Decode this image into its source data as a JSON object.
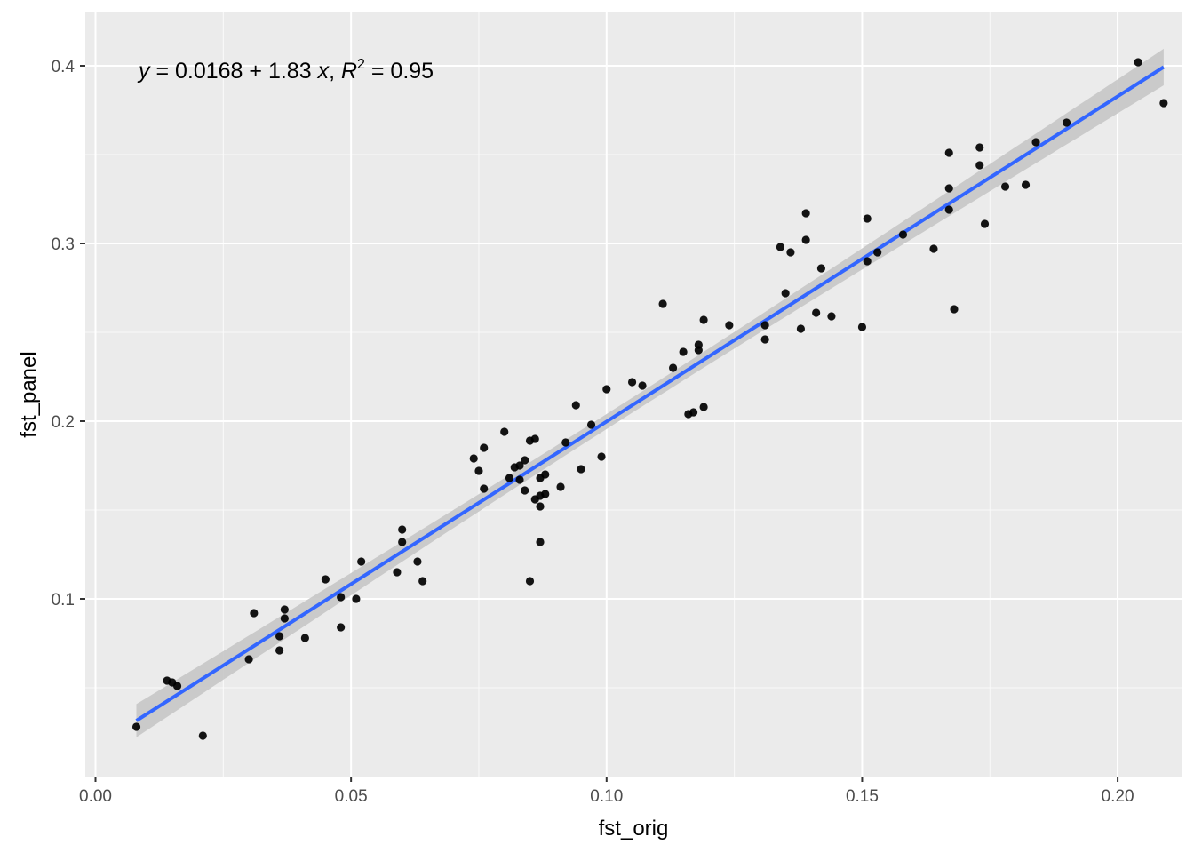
{
  "chart_data": {
    "type": "scatter",
    "title": "",
    "xlabel": "fst_orig",
    "ylabel": "fst_panel",
    "xlim": [
      -0.002,
      0.2125
    ],
    "ylim": [
      0.0,
      0.43
    ],
    "x_ticks": [
      0.0,
      0.05,
      0.1,
      0.15,
      0.2
    ],
    "x_tick_labels": [
      "0.00",
      "0.05",
      "0.10",
      "0.15",
      "0.20"
    ],
    "y_ticks": [
      0.1,
      0.2,
      0.3,
      0.4
    ],
    "y_tick_labels": [
      "0.1",
      "0.2",
      "0.3",
      "0.4"
    ],
    "grid": true,
    "background": "#ebebeb",
    "point_color": "#000000",
    "line_color": "#3366ff",
    "band_color": "#c6c6c6",
    "annotation": {
      "y_var": "y",
      "equation_rest": " = 0.0168 + 1.83 ",
      "x_var": "x",
      "comma": ", ",
      "r_var": "R",
      "r_exp": "2",
      "r_rest": " = 0.95"
    },
    "fit": {
      "intercept": 0.0168,
      "slope": 1.83,
      "x_range": [
        0.008,
        0.209
      ]
    },
    "x": [
      0.008,
      0.014,
      0.015,
      0.016,
      0.021,
      0.03,
      0.031,
      0.036,
      0.036,
      0.037,
      0.037,
      0.041,
      0.045,
      0.048,
      0.048,
      0.051,
      0.052,
      0.059,
      0.06,
      0.06,
      0.063,
      0.064,
      0.074,
      0.075,
      0.076,
      0.076,
      0.08,
      0.081,
      0.082,
      0.083,
      0.083,
      0.084,
      0.084,
      0.085,
      0.085,
      0.086,
      0.086,
      0.087,
      0.087,
      0.087,
      0.087,
      0.088,
      0.088,
      0.091,
      0.092,
      0.094,
      0.095,
      0.097,
      0.099,
      0.1,
      0.105,
      0.107,
      0.111,
      0.113,
      0.115,
      0.116,
      0.117,
      0.118,
      0.118,
      0.119,
      0.119,
      0.124,
      0.131,
      0.131,
      0.134,
      0.135,
      0.136,
      0.138,
      0.139,
      0.139,
      0.141,
      0.142,
      0.144,
      0.15,
      0.151,
      0.151,
      0.153,
      0.158,
      0.164,
      0.167,
      0.167,
      0.167,
      0.168,
      0.173,
      0.173,
      0.174,
      0.178,
      0.182,
      0.184,
      0.19,
      0.204,
      0.209
    ],
    "y": [
      0.028,
      0.054,
      0.053,
      0.051,
      0.023,
      0.066,
      0.092,
      0.079,
      0.071,
      0.089,
      0.094,
      0.078,
      0.111,
      0.084,
      0.101,
      0.1,
      0.121,
      0.115,
      0.139,
      0.132,
      0.121,
      0.11,
      0.179,
      0.172,
      0.162,
      0.185,
      0.194,
      0.168,
      0.174,
      0.167,
      0.175,
      0.161,
      0.178,
      0.11,
      0.189,
      0.19,
      0.156,
      0.132,
      0.152,
      0.168,
      0.158,
      0.17,
      0.159,
      0.163,
      0.188,
      0.209,
      0.173,
      0.198,
      0.18,
      0.218,
      0.222,
      0.22,
      0.266,
      0.23,
      0.239,
      0.204,
      0.205,
      0.243,
      0.24,
      0.208,
      0.257,
      0.254,
      0.254,
      0.246,
      0.298,
      0.272,
      0.295,
      0.252,
      0.317,
      0.302,
      0.261,
      0.286,
      0.259,
      0.253,
      0.314,
      0.29,
      0.295,
      0.305,
      0.297,
      0.351,
      0.331,
      0.319,
      0.263,
      0.354,
      0.344,
      0.311,
      0.332,
      0.333,
      0.357,
      0.368,
      0.402,
      0.379
    ]
  }
}
